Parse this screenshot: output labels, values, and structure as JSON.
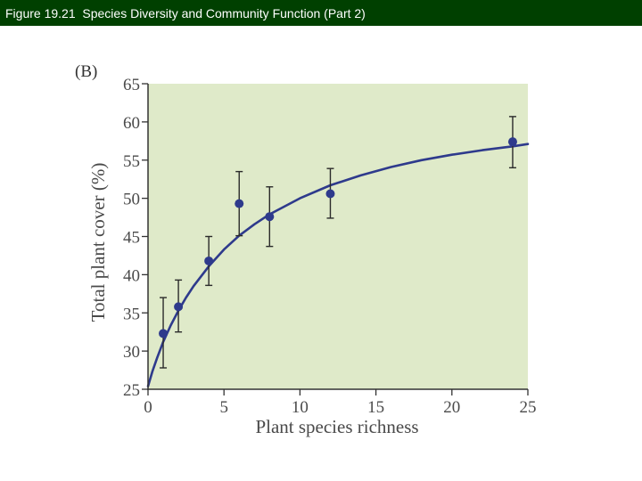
{
  "header": {
    "title": "Figure 19.21  Species Diversity and Community Function (Part 2)"
  },
  "colors": {
    "header_bg": "#004000",
    "plot_bg": "#dfeac9",
    "series": "#2e3a8c",
    "axis": "#333333"
  },
  "chart_data": {
    "type": "scatter",
    "panel_label": "(B)",
    "xlabel": "Plant species richness",
    "ylabel": "Total plant cover (%)",
    "xlim": [
      0,
      25
    ],
    "ylim": [
      25,
      65
    ],
    "xticks": [
      0,
      5,
      10,
      15,
      20,
      25
    ],
    "yticks": [
      25,
      30,
      35,
      40,
      45,
      50,
      55,
      60,
      65
    ],
    "grid": false,
    "series": [
      {
        "name": "observed",
        "points": [
          {
            "x": 1,
            "y": 32.3,
            "err_low": 27.8,
            "err_high": 37.0
          },
          {
            "x": 2,
            "y": 35.8,
            "err_low": 32.5,
            "err_high": 39.3
          },
          {
            "x": 4,
            "y": 41.8,
            "err_low": 38.6,
            "err_high": 45.0
          },
          {
            "x": 6,
            "y": 49.3,
            "err_low": 45.1,
            "err_high": 53.5
          },
          {
            "x": 8,
            "y": 47.6,
            "err_low": 43.7,
            "err_high": 51.5
          },
          {
            "x": 12,
            "y": 50.6,
            "err_low": 47.4,
            "err_high": 53.9
          },
          {
            "x": 24,
            "y": 57.4,
            "err_low": 54.0,
            "err_high": 60.7
          }
        ]
      }
    ],
    "fit_curve": {
      "name": "fitted curve",
      "x": [
        0,
        0.3,
        0.6,
        1,
        1.5,
        2,
        2.5,
        3,
        4,
        5,
        6,
        7,
        8,
        10,
        12,
        14,
        16,
        18,
        20,
        22,
        24,
        25
      ],
      "y": [
        25.4,
        27.4,
        29.1,
        31.2,
        33.4,
        35.3,
        37.0,
        38.5,
        41.1,
        43.3,
        45.1,
        46.6,
        47.9,
        50.0,
        51.7,
        53.0,
        54.1,
        55.0,
        55.7,
        56.3,
        56.8,
        57.1
      ]
    }
  }
}
